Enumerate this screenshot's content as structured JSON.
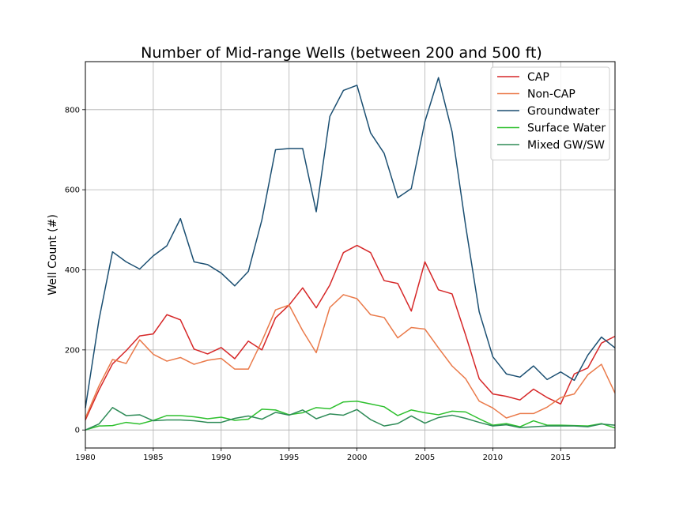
{
  "chart_data": {
    "type": "line",
    "title": "Number of Mid-range Wells (between 200 and 500 ft)",
    "xlabel": "",
    "ylabel": "Well Count (#)",
    "xlim": [
      1980,
      2019
    ],
    "ylim": [
      -45,
      920
    ],
    "x_ticks": [
      1980,
      1985,
      1990,
      1995,
      2000,
      2005,
      2010,
      2015
    ],
    "y_ticks": [
      0,
      200,
      400,
      600,
      800
    ],
    "grid": true,
    "legend_position": "top-right",
    "x": [
      1980,
      1981,
      1982,
      1983,
      1984,
      1985,
      1986,
      1987,
      1988,
      1989,
      1990,
      1991,
      1992,
      1993,
      1994,
      1995,
      1996,
      1997,
      1998,
      1999,
      2000,
      2001,
      2002,
      2003,
      2004,
      2005,
      2006,
      2007,
      2008,
      2009,
      2010,
      2011,
      2012,
      2013,
      2014,
      2015,
      2016,
      2017,
      2018,
      2019
    ],
    "series": [
      {
        "name": "CAP",
        "color": "#d62728",
        "values": [
          25,
          100,
          165,
          198,
          235,
          240,
          288,
          275,
          202,
          190,
          206,
          178,
          222,
          200,
          280,
          312,
          355,
          305,
          362,
          443,
          461,
          443,
          373,
          366,
          297,
          420,
          350,
          340,
          237,
          128,
          90,
          84,
          75,
          102,
          81,
          65,
          140,
          155,
          217,
          234
        ]
      },
      {
        "name": "Non-CAP",
        "color": "#ea7a4a",
        "values": [
          30,
          110,
          176,
          166,
          225,
          189,
          172,
          181,
          164,
          174,
          179,
          152,
          152,
          222,
          300,
          312,
          248,
          193,
          306,
          338,
          328,
          288,
          281,
          230,
          256,
          252,
          205,
          160,
          128,
          72,
          55,
          30,
          41,
          41,
          57,
          81,
          90,
          138,
          164,
          92
        ]
      },
      {
        "name": "Groundwater",
        "color": "#1b4f72",
        "values": [
          55,
          275,
          445,
          420,
          402,
          435,
          460,
          528,
          420,
          413,
          392,
          360,
          396,
          525,
          700,
          703,
          703,
          545,
          783,
          848,
          861,
          742,
          691,
          580,
          603,
          770,
          880,
          745,
          510,
          295,
          183,
          140,
          132,
          160,
          126,
          145,
          124,
          187,
          232,
          205
        ]
      },
      {
        "name": "Surface Water",
        "color": "#2ec02e",
        "values": [
          0,
          10,
          11,
          19,
          15,
          24,
          36,
          36,
          33,
          28,
          32,
          24,
          27,
          52,
          50,
          38,
          43,
          56,
          53,
          70,
          72,
          65,
          58,
          36,
          50,
          43,
          38,
          47,
          45,
          28,
          12,
          16,
          8,
          23,
          12,
          12,
          11,
          10,
          16,
          5
        ]
      },
      {
        "name": "Mixed GW/SW",
        "color": "#2e8b57",
        "values": [
          0,
          15,
          56,
          36,
          38,
          23,
          25,
          25,
          23,
          19,
          19,
          29,
          35,
          27,
          44,
          37,
          50,
          28,
          40,
          37,
          51,
          26,
          10,
          16,
          35,
          17,
          31,
          37,
          29,
          19,
          10,
          13,
          6,
          8,
          10,
          10,
          10,
          8,
          15,
          12
        ]
      }
    ]
  }
}
